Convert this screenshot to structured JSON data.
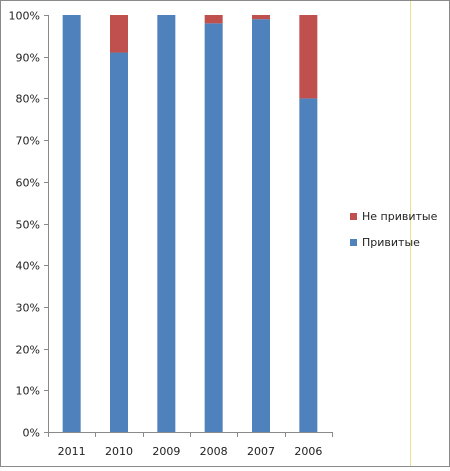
{
  "chart_data": {
    "type": "bar",
    "stacked": true,
    "percent_stacked": true,
    "categories": [
      "2011",
      "2010",
      "2009",
      "2008",
      "2007",
      "2006"
    ],
    "series": [
      {
        "name": "Привитые",
        "color": "#4f81bd",
        "values": [
          100,
          91,
          100,
          98,
          99,
          80
        ]
      },
      {
        "name": "Не привитые",
        "color": "#c0504d",
        "values": [
          0,
          9,
          0,
          2,
          1,
          20
        ]
      }
    ],
    "ylim": [
      0,
      100
    ],
    "yticks": [
      "0%",
      "10%",
      "20%",
      "30%",
      "40%",
      "50%",
      "60%",
      "70%",
      "80%",
      "90%",
      "100%"
    ],
    "ytick_values": [
      0,
      10,
      20,
      30,
      40,
      50,
      60,
      70,
      80,
      90,
      100
    ],
    "grid": false,
    "legend": {
      "position": "right",
      "order": [
        "Не привитые",
        "Привитые"
      ]
    },
    "title": "",
    "xlabel": "",
    "ylabel": ""
  }
}
